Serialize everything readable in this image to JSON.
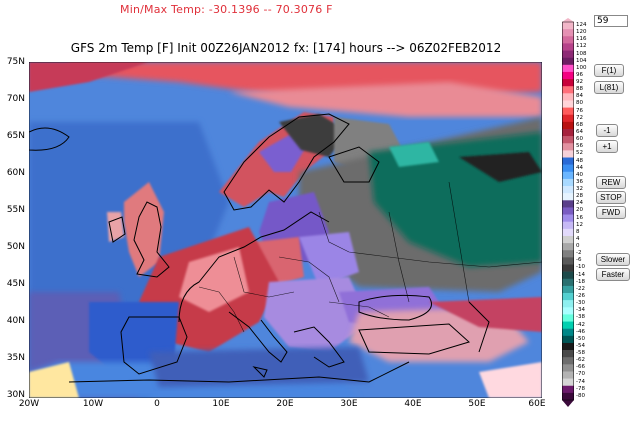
{
  "header": {
    "minmax": "Min/Max Temp: -30.1396 -- 70.3076 F",
    "title": "GFS 2m Temp [F] Init 00Z26JAN2012 fx: [174] hours --> 06Z02FEB2012"
  },
  "axes": {
    "y_labels": [
      "75N",
      "70N",
      "65N",
      "60N",
      "55N",
      "50N",
      "45N",
      "40N",
      "35N",
      "30N"
    ],
    "x_labels": [
      "20W",
      "10W",
      "0",
      "10E",
      "20E",
      "30E",
      "40E",
      "50E",
      "60E"
    ]
  },
  "colorbar": {
    "labels": [
      "124",
      "120",
      "116",
      "112",
      "108",
      "104",
      "100",
      "96",
      "92",
      "88",
      "84",
      "80",
      "76",
      "72",
      "68",
      "64",
      "60",
      "56",
      "52",
      "48",
      "44",
      "40",
      "36",
      "32",
      "28",
      "24",
      "20",
      "16",
      "12",
      "8",
      "4",
      "0",
      "-2",
      "-6",
      "-10",
      "-14",
      "-18",
      "-22",
      "-26",
      "-30",
      "-34",
      "-38",
      "-42",
      "-46",
      "-50",
      "-54",
      "-58",
      "-62",
      "-66",
      "-70",
      "-74",
      "-78",
      "-80"
    ],
    "colors": [
      "#f2b6c8",
      "#e591b3",
      "#d36a9d",
      "#b6438a",
      "#8e2a76",
      "#6d1d63",
      "#ff4ec8",
      "#f40082",
      "#c8003a",
      "#ff6f7a",
      "#ffb7bd",
      "#ffd4d8",
      "#ff5c5c",
      "#e0262b",
      "#b81212",
      "#a6223d",
      "#c4566c",
      "#e291a0",
      "#f5d0d8",
      "#2a6ad6",
      "#3b8ff2",
      "#6bb6ff",
      "#a8d9ff",
      "#cfe8ff",
      "#e6f3ff",
      "#5a3f8a",
      "#7a5cc2",
      "#a08cea",
      "#c6b9f5",
      "#e2dafb",
      "#cfcfcf",
      "#a8a8a8",
      "#808080",
      "#5a5a5a",
      "#3a3a3a",
      "#1d4a4a",
      "#2a7070",
      "#36a0a0",
      "#53d0d0",
      "#8ef0f0",
      "#a8ffff",
      "#64ffdf",
      "#00d0b0",
      "#008888",
      "#005555",
      "#1a1a1a",
      "#4a4a4a",
      "#6d6d6d",
      "#909090",
      "#b3b3b3",
      "#d6d6d6",
      "#6b1a6b",
      "#3b0a3b"
    ]
  },
  "controls": {
    "frame_value": "59",
    "buttons": {
      "first": "F(1)",
      "last": "L(81)",
      "minus": "-1",
      "plus": "+1",
      "rew": "REW",
      "stop": "STOP",
      "fwd": "FWD",
      "slower": "Slower",
      "faster": "Faster"
    }
  }
}
